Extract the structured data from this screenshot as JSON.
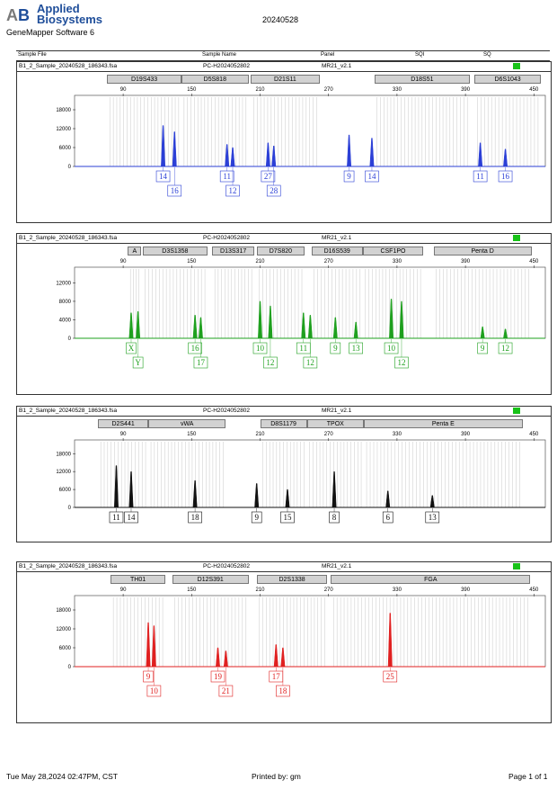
{
  "header": {
    "brand_line1": "Applied",
    "brand_line2": "Biosystems",
    "software": "GeneMapper Software 6",
    "date": "20240528"
  },
  "table_header": {
    "sample_file": "Sample File",
    "sample_name": "Sample Name",
    "panel": "Panel",
    "sqi": "SQI",
    "sq": "SQ"
  },
  "colors": {
    "blue": "#2b3fd6",
    "green": "#1ea01e",
    "black": "#111111",
    "red": "#e02020",
    "qc_ok": "#18c218"
  },
  "chart_data": [
    {
      "type": "electropherogram",
      "dye": "blue",
      "sample_file": "B1_2_Sample_20240528_186343.fsa",
      "sample_name": "PC-H2024052802",
      "panel": "MR21_v2.1",
      "x_ticks": [
        90,
        150,
        210,
        270,
        330,
        390,
        450
      ],
      "y_ticks": [
        0,
        6000,
        12000,
        18000
      ],
      "ylim": [
        0,
        22000
      ],
      "markers": [
        {
          "name": "D19S433",
          "start": 76,
          "end": 141
        },
        {
          "name": "D5S818",
          "start": 141,
          "end": 200
        },
        {
          "name": "D21S11",
          "start": 202,
          "end": 262
        },
        {
          "name": "D18S51",
          "start": 310,
          "end": 394
        },
        {
          "name": "D6S1043",
          "start": 398,
          "end": 456
        }
      ],
      "peaks": [
        {
          "size": 125,
          "height": 13000,
          "allele": "14"
        },
        {
          "size": 135,
          "height": 11000,
          "allele": "16"
        },
        {
          "size": 181,
          "height": 7000,
          "allele": "11"
        },
        {
          "size": 186,
          "height": 6000,
          "allele": "12"
        },
        {
          "size": 217,
          "height": 7500,
          "allele": "27"
        },
        {
          "size": 222,
          "height": 6500,
          "allele": "28"
        },
        {
          "size": 288,
          "height": 10000,
          "allele": "9"
        },
        {
          "size": 308,
          "height": 9000,
          "allele": "14"
        },
        {
          "size": 403,
          "height": 7500,
          "allele": "11"
        },
        {
          "size": 425,
          "height": 5500,
          "allele": "16"
        }
      ]
    },
    {
      "type": "electropherogram",
      "dye": "green",
      "sample_file": "B1_2_Sample_20240528_186343.fsa",
      "sample_name": "PC-H2024052802",
      "panel": "MR21_v2.1",
      "x_ticks": [
        90,
        150,
        210,
        270,
        330,
        390,
        450
      ],
      "y_ticks": [
        0,
        4000,
        8000,
        12000
      ],
      "ylim": [
        0,
        15000
      ],
      "markers": [
        {
          "name": "A",
          "start": 94,
          "end": 106
        },
        {
          "name": "D3S1358",
          "start": 107,
          "end": 164
        },
        {
          "name": "D13S317",
          "start": 168,
          "end": 205
        },
        {
          "name": "D7S820",
          "start": 207,
          "end": 249
        },
        {
          "name": "D16S539",
          "start": 255,
          "end": 300
        },
        {
          "name": "CSF1PO",
          "start": 300,
          "end": 353
        },
        {
          "name": "Penta D",
          "start": 362,
          "end": 448
        }
      ],
      "peaks": [
        {
          "size": 97,
          "height": 5500,
          "allele": "X"
        },
        {
          "size": 103,
          "height": 5800,
          "allele": "Y"
        },
        {
          "size": 153,
          "height": 5000,
          "allele": "16"
        },
        {
          "size": 158,
          "height": 4500,
          "allele": "17"
        },
        {
          "size": 210,
          "height": 8000,
          "allele": "10"
        },
        {
          "size": 219,
          "height": 7000,
          "allele": "12"
        },
        {
          "size": 248,
          "height": 5500,
          "allele": "11"
        },
        {
          "size": 254,
          "height": 5000,
          "allele": "12"
        },
        {
          "size": 276,
          "height": 4500,
          "allele": "9"
        },
        {
          "size": 294,
          "height": 3500,
          "allele": "13"
        },
        {
          "size": 325,
          "height": 8500,
          "allele": "10"
        },
        {
          "size": 334,
          "height": 8000,
          "allele": "12"
        },
        {
          "size": 405,
          "height": 2500,
          "allele": "9"
        },
        {
          "size": 425,
          "height": 2000,
          "allele": "12"
        }
      ]
    },
    {
      "type": "electropherogram",
      "dye": "black",
      "sample_file": "B1_2_Sample_20240528_186343.fsa",
      "sample_name": "PC-H2024052802",
      "panel": "MR21_v2.1",
      "x_ticks": [
        90,
        150,
        210,
        270,
        330,
        390,
        450
      ],
      "y_ticks": [
        0,
        6000,
        12000,
        18000
      ],
      "ylim": [
        0,
        22000
      ],
      "markers": [
        {
          "name": "D2S441",
          "start": 68,
          "end": 112
        },
        {
          "name": "vWA",
          "start": 112,
          "end": 180
        },
        {
          "name": "D8S1179",
          "start": 210,
          "end": 251
        },
        {
          "name": "TPOX",
          "start": 251,
          "end": 301
        },
        {
          "name": "Penta E",
          "start": 301,
          "end": 440
        }
      ],
      "peaks": [
        {
          "size": 84,
          "height": 14000,
          "allele": "11"
        },
        {
          "size": 97,
          "height": 12000,
          "allele": "14"
        },
        {
          "size": 153,
          "height": 9000,
          "allele": "18"
        },
        {
          "size": 207,
          "height": 8000,
          "allele": "9"
        },
        {
          "size": 234,
          "height": 6000,
          "allele": "15"
        },
        {
          "size": 275,
          "height": 12000,
          "allele": "8"
        },
        {
          "size": 322,
          "height": 5500,
          "allele": "6"
        },
        {
          "size": 361,
          "height": 4000,
          "allele": "13"
        }
      ]
    },
    {
      "type": "electropherogram",
      "dye": "red",
      "sample_file": "B1_2_Sample_20240528_186343.fsa",
      "sample_name": "PC-H2024052802",
      "panel": "MR21_v2.1",
      "x_ticks": [
        90,
        150,
        210,
        270,
        330,
        390,
        450
      ],
      "y_ticks": [
        0,
        6000,
        12000,
        18000
      ],
      "ylim": [
        0,
        22000
      ],
      "markers": [
        {
          "name": "TH01",
          "start": 79,
          "end": 127
        },
        {
          "name": "D12S391",
          "start": 133,
          "end": 200
        },
        {
          "name": "D2S1338",
          "start": 207,
          "end": 269
        },
        {
          "name": "FGA",
          "start": 272,
          "end": 447
        }
      ],
      "peaks": [
        {
          "size": 112,
          "height": 14000,
          "allele": "9"
        },
        {
          "size": 117,
          "height": 13000,
          "allele": "10"
        },
        {
          "size": 173,
          "height": 6000,
          "allele": "19"
        },
        {
          "size": 180,
          "height": 5000,
          "allele": "21"
        },
        {
          "size": 224,
          "height": 7000,
          "allele": "17"
        },
        {
          "size": 230,
          "height": 6000,
          "allele": "18"
        },
        {
          "size": 324,
          "height": 17000,
          "allele": "25"
        }
      ]
    }
  ],
  "footer": {
    "timestamp": "Tue May 28,2024 02:47PM, CST",
    "printed_by": "Printed by: gm",
    "page": "Page 1 of 1"
  }
}
